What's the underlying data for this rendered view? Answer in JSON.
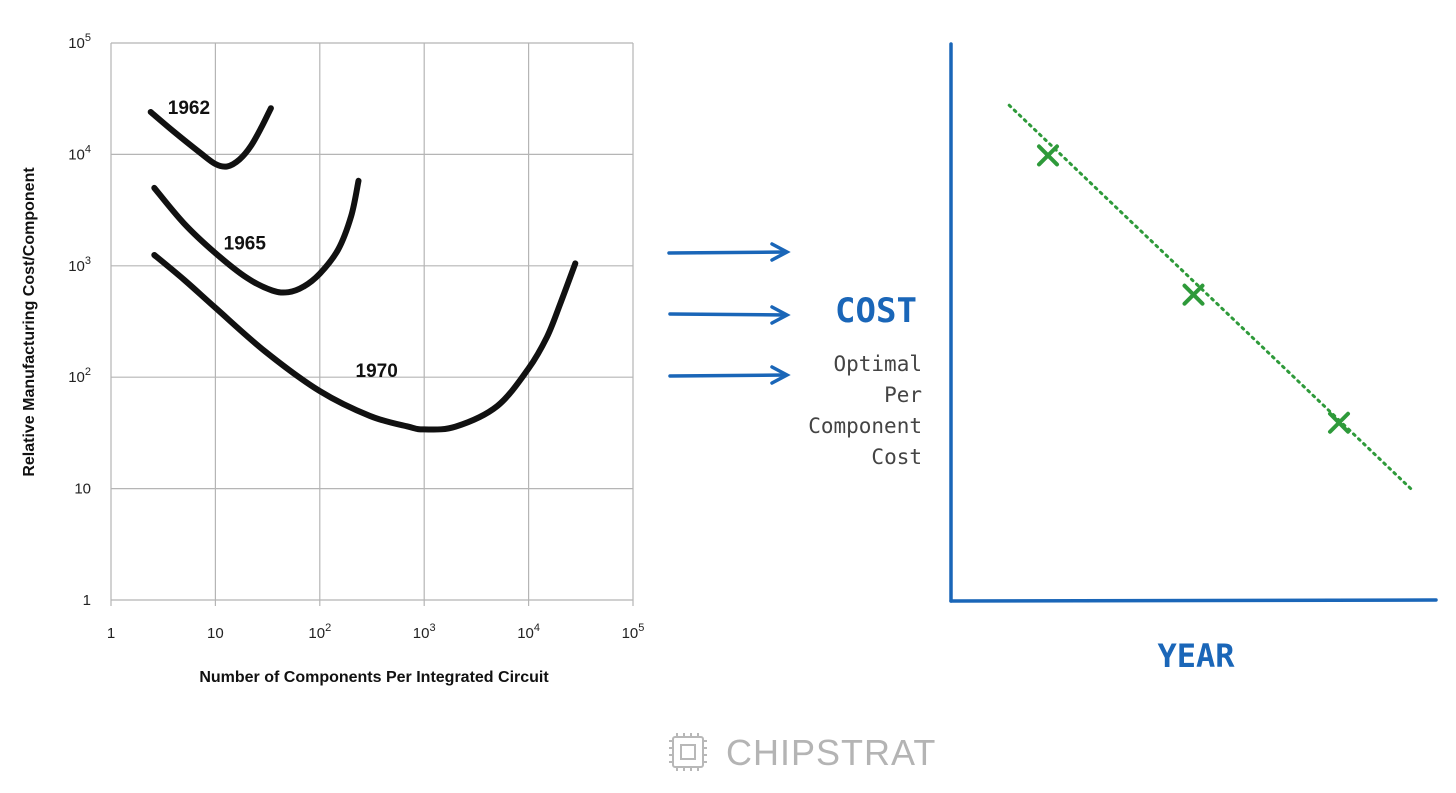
{
  "chart_data": [
    {
      "type": "line",
      "title": "",
      "xlabel": "Number of Components Per Integrated Circuit",
      "ylabel": "Relative Manufacturing Cost/Component",
      "xscale": "log",
      "yscale": "log",
      "xlim": [
        1,
        100000
      ],
      "ylim": [
        1,
        100000
      ],
      "grid": true,
      "x_ticks": [
        {
          "value": 1,
          "base": "1",
          "exp": ""
        },
        {
          "value": 10,
          "base": "10",
          "exp": ""
        },
        {
          "value": 100,
          "base": "10",
          "exp": "2"
        },
        {
          "value": 1000,
          "base": "10",
          "exp": "3"
        },
        {
          "value": 10000,
          "base": "10",
          "exp": "4"
        },
        {
          "value": 100000,
          "base": "10",
          "exp": "5"
        }
      ],
      "y_ticks": [
        {
          "value": 1,
          "base": "1",
          "exp": ""
        },
        {
          "value": 10,
          "base": "10",
          "exp": ""
        },
        {
          "value": 100,
          "base": "10",
          "exp": "2"
        },
        {
          "value": 1000,
          "base": "10",
          "exp": "3"
        },
        {
          "value": 10000,
          "base": "10",
          "exp": "4"
        },
        {
          "value": 100000,
          "base": "10",
          "exp": "5"
        }
      ],
      "series": [
        {
          "name": "1962",
          "x": [
            2.4,
            4,
            7,
            10,
            13,
            17,
            22,
            28,
            34
          ],
          "y": [
            24000,
            16000,
            10500,
            8200,
            7800,
            9000,
            12000,
            18000,
            26000
          ]
        },
        {
          "name": "1965",
          "x": [
            2.6,
            5,
            10,
            20,
            35,
            50,
            70,
            100,
            150,
            200,
            235
          ],
          "y": [
            5000,
            2400,
            1300,
            780,
            600,
            580,
            650,
            850,
            1400,
            2800,
            5800
          ]
        },
        {
          "name": "1970",
          "x": [
            2.6,
            5,
            10,
            30,
            100,
            300,
            700,
            1000,
            2000,
            5000,
            10000,
            15000,
            20000,
            28000
          ],
          "y": [
            1250,
            750,
            420,
            170,
            75,
            45,
            36,
            34,
            36,
            55,
            120,
            230,
            450,
            1050
          ]
        }
      ]
    },
    {
      "type": "scatter",
      "title": "",
      "xlabel": "YEAR",
      "ylabel": "COST",
      "ylabel_note": [
        "Optimal",
        "Per",
        "Component",
        "Cost"
      ],
      "x_range": [
        0,
        10
      ],
      "y_range": [
        0,
        10
      ],
      "points": [
        {
          "x": 2,
          "y": 8
        },
        {
          "x": 5,
          "y": 5.5
        },
        {
          "x": 8,
          "y": 3.2
        }
      ],
      "trend": {
        "x": [
          1.2,
          9.5
        ],
        "y": [
          8.9,
          2
        ]
      }
    }
  ],
  "brand": {
    "name": "CHIPSTRAT",
    "icon": "chip-icon"
  },
  "colors": {
    "hand_blue": "#1a66b8",
    "marker_green": "#2e9a3a",
    "curve_black": "#111111",
    "grid": "#b5b5b5",
    "logo_grey": "#b4b4b4"
  }
}
